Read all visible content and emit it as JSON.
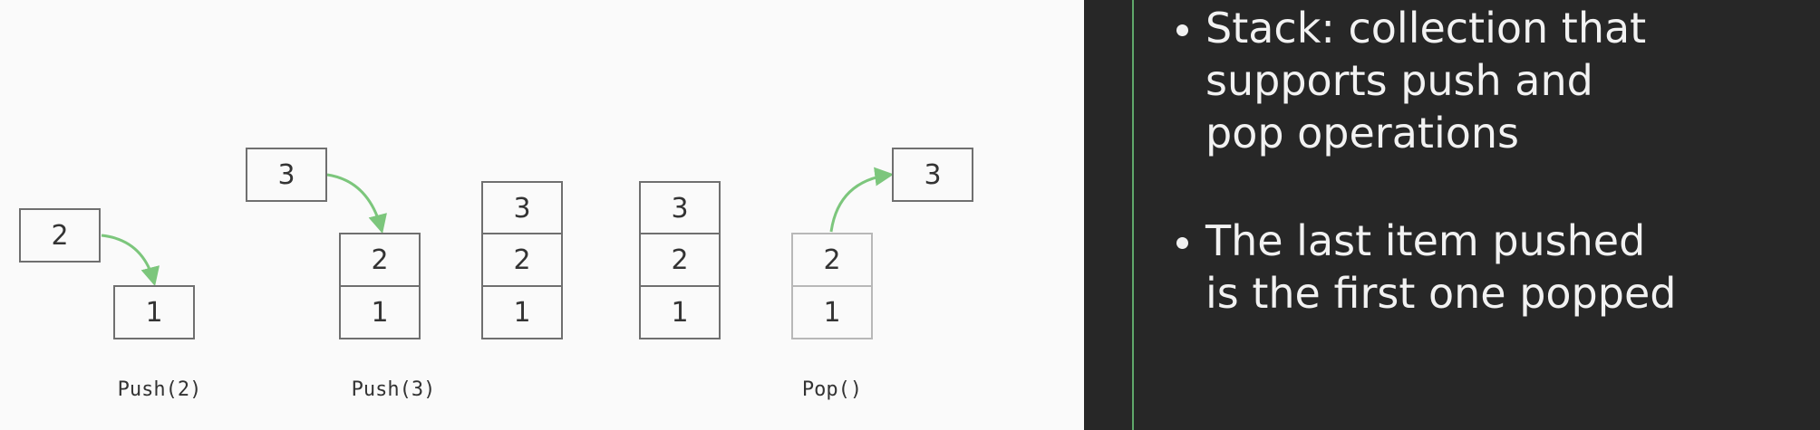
{
  "diagram": {
    "steps": [
      {
        "caption": "Push(2)",
        "incoming": "2",
        "stack": [
          "1"
        ]
      },
      {
        "caption": "Push(3)",
        "incoming": "3",
        "stack": [
          "2",
          "1"
        ]
      },
      {
        "caption": "",
        "stack": [
          "3",
          "2",
          "1"
        ]
      },
      {
        "caption": "",
        "stack": [
          "3",
          "2",
          "1"
        ]
      },
      {
        "caption": "Pop()",
        "outgoing": "3",
        "stack": [
          "2",
          "1"
        ]
      }
    ]
  },
  "bullets": [
    {
      "lines": [
        "Stack: collection that",
        "supports push and",
        "pop operations"
      ]
    },
    {
      "lines": [
        "The last item pushed",
        "is the first one popped"
      ]
    }
  ],
  "colors": {
    "arrow": "#7cc67c",
    "dark_panel": "#272727",
    "accent_line": "#5fa86a"
  }
}
